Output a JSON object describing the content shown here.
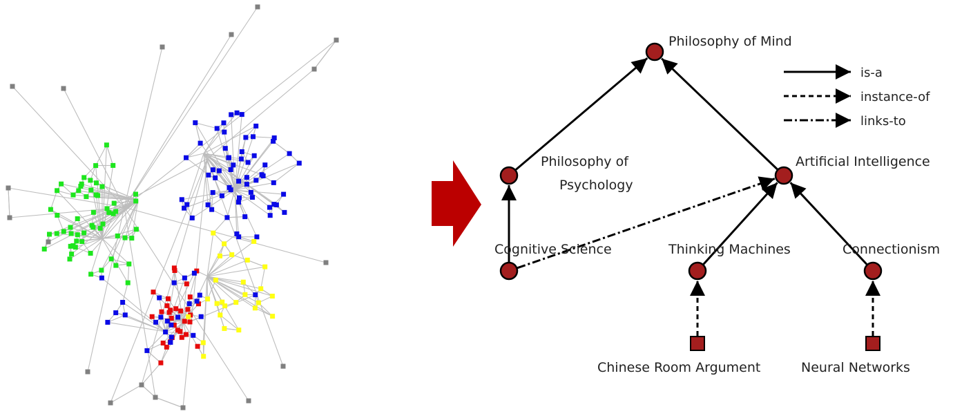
{
  "network": {
    "colors": {
      "green": "#1ee61e",
      "yellow": "#ffff14",
      "blue": "#0a0ae6",
      "red": "#e60a0a",
      "gray": "#808080",
      "edge": "#bdbdbd"
    }
  },
  "transition_arrow": {
    "color": "#bb0000"
  },
  "ontology": {
    "node_color": "#a31e1e",
    "nodes": [
      {
        "id": "pom",
        "label": "Philosophy of Mind",
        "shape": "circle"
      },
      {
        "id": "pop",
        "label": "Philosophy of Psychology",
        "shape": "circle"
      },
      {
        "id": "ai",
        "label": "Artificial Intelligence",
        "shape": "circle"
      },
      {
        "id": "cs",
        "label": "Cognitive Science",
        "shape": "circle"
      },
      {
        "id": "tm",
        "label": "Thinking Machines",
        "shape": "circle"
      },
      {
        "id": "cn",
        "label": "Connectionism",
        "shape": "circle"
      },
      {
        "id": "cra",
        "label": "Chinese Room Argument",
        "shape": "square"
      },
      {
        "id": "nn",
        "label": "Neural Networks",
        "shape": "square"
      }
    ],
    "edges": [
      {
        "from": "pop",
        "to": "pom",
        "type": "is-a"
      },
      {
        "from": "ai",
        "to": "pom",
        "type": "is-a"
      },
      {
        "from": "cs",
        "to": "pop",
        "type": "is-a"
      },
      {
        "from": "cs",
        "to": "ai",
        "type": "links-to"
      },
      {
        "from": "tm",
        "to": "ai",
        "type": "is-a"
      },
      {
        "from": "cn",
        "to": "ai",
        "type": "is-a"
      },
      {
        "from": "cra",
        "to": "tm",
        "type": "instance-of"
      },
      {
        "from": "nn",
        "to": "cn",
        "type": "instance-of"
      }
    ],
    "legend": [
      {
        "type": "is-a",
        "label": "is-a"
      },
      {
        "type": "instance-of",
        "label": "instance-of"
      },
      {
        "type": "links-to",
        "label": "links-to"
      }
    ]
  }
}
